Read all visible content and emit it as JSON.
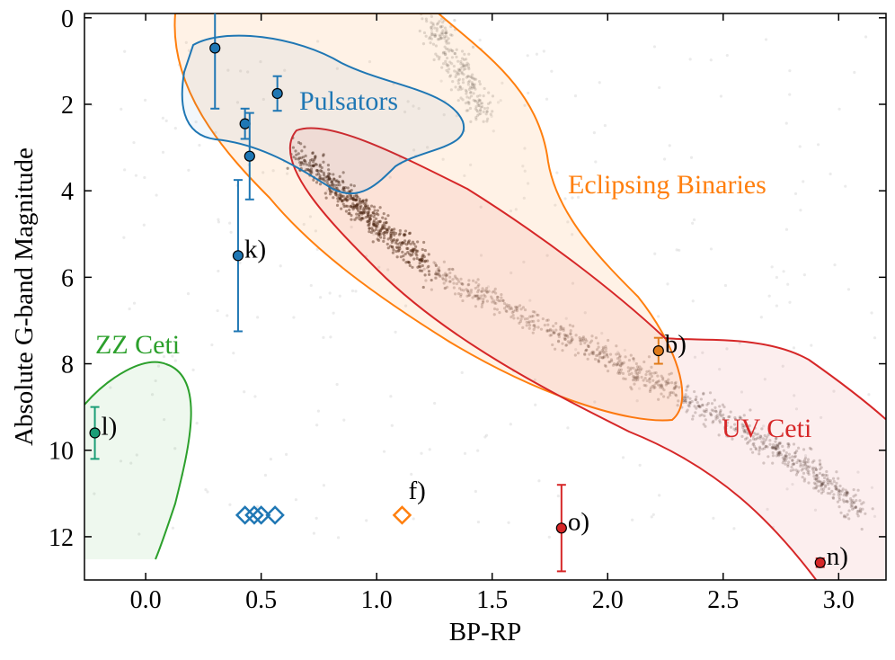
{
  "chart_data": {
    "type": "scatter",
    "xlabel": "BP-RP",
    "ylabel": "Absolute G-band Magnitude",
    "xlim": [
      -0.265,
      3.205
    ],
    "ylim": [
      -0.1,
      13
    ],
    "y_inverted": true,
    "xticks": [
      {
        "value": 0,
        "label": "0.0"
      },
      0.5,
      {
        "value": 1,
        "label": "1.0"
      },
      1.5,
      {
        "value": 2,
        "label": "2.0"
      },
      2.5,
      {
        "value": 3,
        "label": "3.0"
      }
    ],
    "yticks": [
      0,
      2,
      4,
      6,
      8,
      10,
      12
    ],
    "regions": [
      {
        "name": "Pulsators",
        "color": "#1f77b4"
      },
      {
        "name": "Eclipsing Binaries",
        "color": "#ff7f0e"
      },
      {
        "name": "ZZ Ceti",
        "color": "#2ca02c"
      },
      {
        "name": "UV Ceti",
        "color": "#d62728"
      }
    ],
    "points": [
      {
        "x": 0.3,
        "y": 0.7,
        "yerr": 1.4,
        "color": "#1f77b4"
      },
      {
        "x": 0.57,
        "y": 1.75,
        "yerr": 0.4,
        "color": "#1f77b4"
      },
      {
        "x": 0.43,
        "y": 2.45,
        "yerr": 0.35,
        "color": "#1f77b4"
      },
      {
        "x": 0.45,
        "y": 3.2,
        "yerr": 1.0,
        "color": "#1f77b4"
      },
      {
        "x": 0.4,
        "y": 5.5,
        "yerr": 1.75,
        "color": "#1f77b4",
        "label": "k)"
      },
      {
        "x": 2.22,
        "y": 7.7,
        "yerr": 0.3,
        "color": "#e07b1a",
        "label": "b)"
      },
      {
        "x": -0.22,
        "y": 9.6,
        "yerr": 0.6,
        "color": "#1b9e77",
        "label": "l)"
      },
      {
        "x": 1.8,
        "y": 11.8,
        "yerr": 1.0,
        "color": "#d62728",
        "label": "o)"
      },
      {
        "x": 2.92,
        "y": 12.6,
        "yerr": 0.1,
        "color": "#d62728",
        "label": "n)"
      }
    ],
    "markers": [
      {
        "x": 0.43,
        "y": 11.5,
        "color": "#1f77b4"
      },
      {
        "x": 0.47,
        "y": 11.5,
        "color": "#1f77b4"
      },
      {
        "x": 0.5,
        "y": 11.5,
        "color": "#1f77b4"
      },
      {
        "x": 0.56,
        "y": 11.5,
        "color": "#1f77b4"
      },
      {
        "x": 1.11,
        "y": 11.5,
        "color": "#ff7f0e",
        "label": "f)"
      }
    ]
  }
}
